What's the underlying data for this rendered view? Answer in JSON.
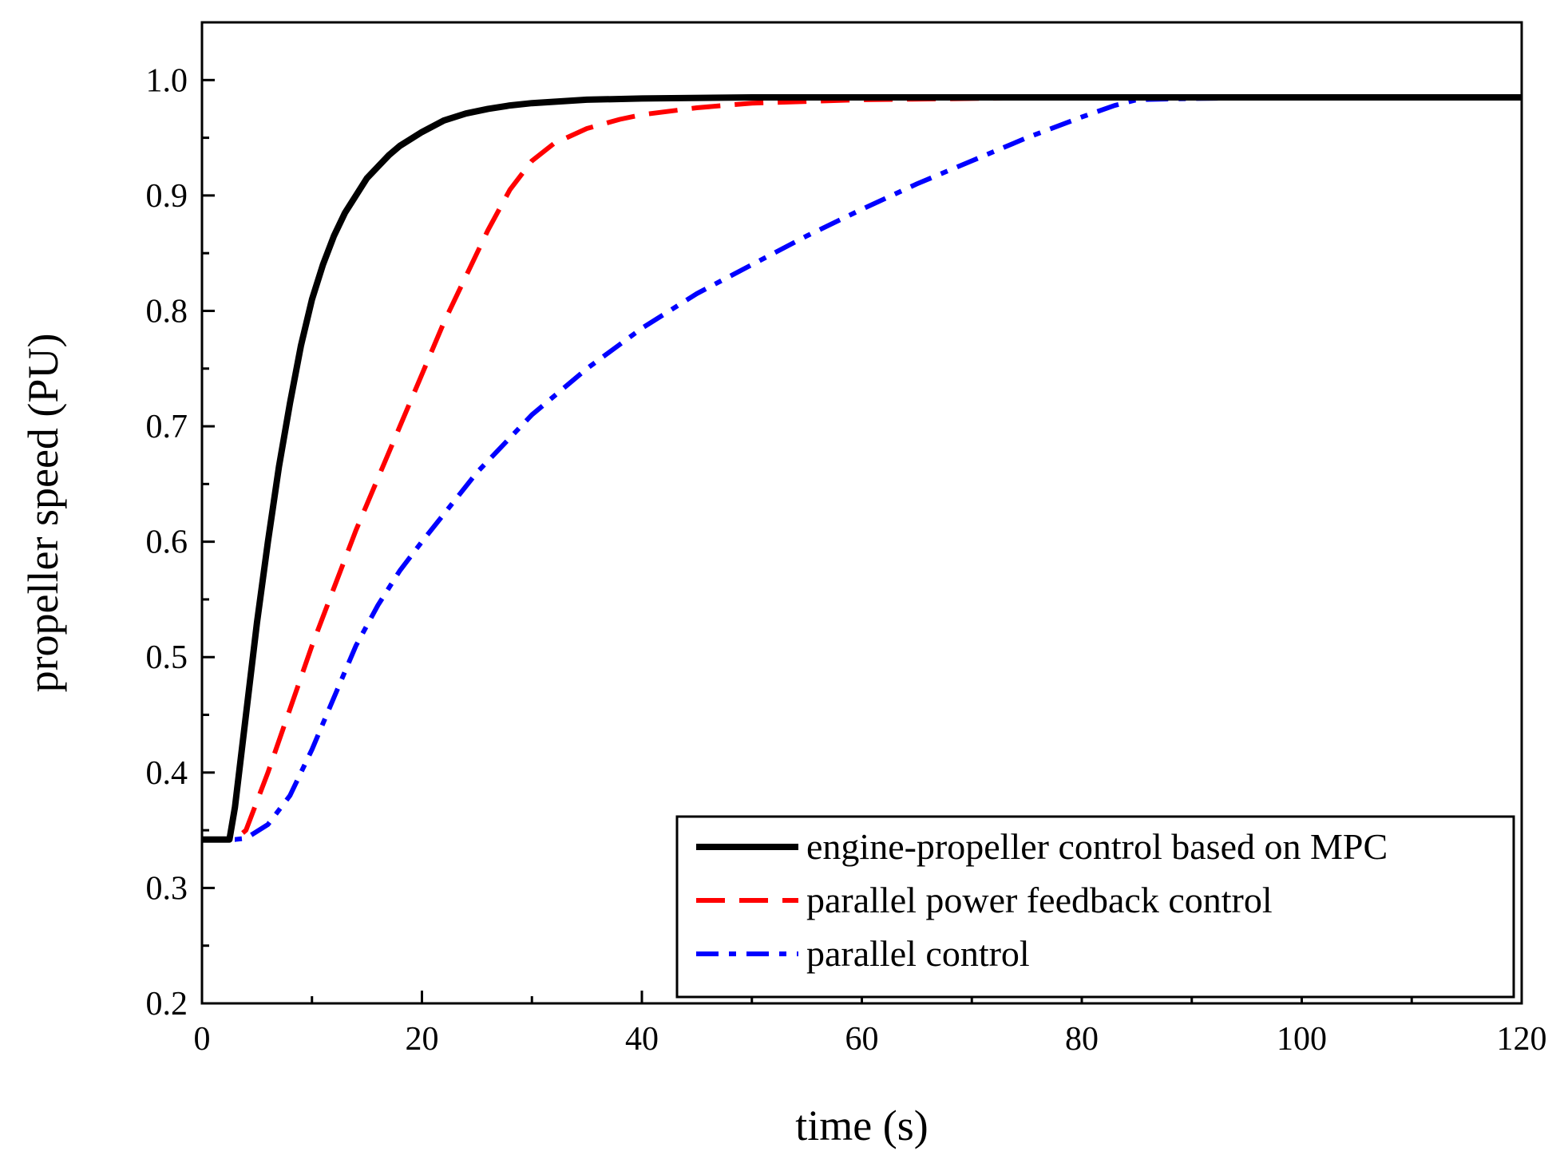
{
  "chart_data": {
    "type": "line",
    "title": "",
    "xlabel": "time (s)",
    "ylabel": "propeller speed (PU)",
    "xlim": [
      0,
      120
    ],
    "ylim": [
      0.2,
      1.05
    ],
    "xticks": [
      0,
      20,
      40,
      60,
      80,
      100,
      120
    ],
    "xtick_labels": [
      "0",
      "20",
      "40",
      "60",
      "80",
      "100",
      "120"
    ],
    "yticks": [
      0.2,
      0.3,
      0.4,
      0.5,
      0.6,
      0.7,
      0.8,
      0.9,
      1.0
    ],
    "ytick_labels": [
      "0.2",
      "0.3",
      "0.4",
      "0.5",
      "0.6",
      "0.7",
      "0.8",
      "0.9",
      "1.0"
    ],
    "grid": false,
    "legend_position": "bottom-right",
    "series": [
      {
        "name": "engine-propeller control based on MPC",
        "color": "#000000",
        "style": "solid",
        "x": [
          0,
          2.5,
          3,
          4,
          5,
          6,
          7,
          8,
          9,
          10,
          11,
          12,
          13,
          14,
          15,
          16,
          17,
          18,
          20,
          22,
          24,
          26,
          28,
          30,
          35,
          40,
          50,
          60,
          80,
          100,
          120
        ],
        "y": [
          0.342,
          0.342,
          0.37,
          0.45,
          0.53,
          0.6,
          0.665,
          0.72,
          0.77,
          0.81,
          0.84,
          0.865,
          0.885,
          0.9,
          0.915,
          0.925,
          0.935,
          0.943,
          0.955,
          0.965,
          0.971,
          0.975,
          0.978,
          0.98,
          0.983,
          0.984,
          0.985,
          0.985,
          0.985,
          0.985,
          0.985
        ]
      },
      {
        "name": "parallel power feedback control",
        "color": "#ff0000",
        "style": "dashed",
        "x": [
          0,
          3,
          4,
          6,
          8,
          10,
          12,
          14,
          16,
          18,
          20,
          22,
          24,
          26,
          28,
          30,
          32,
          35,
          38,
          40,
          45,
          50,
          60,
          70,
          80,
          100,
          120
        ],
        "y": [
          0.342,
          0.342,
          0.35,
          0.4,
          0.455,
          0.51,
          0.56,
          0.61,
          0.655,
          0.7,
          0.745,
          0.79,
          0.83,
          0.87,
          0.905,
          0.93,
          0.945,
          0.958,
          0.966,
          0.97,
          0.976,
          0.98,
          0.983,
          0.984,
          0.985,
          0.985,
          0.985
        ]
      },
      {
        "name": "parallel control",
        "color": "#0000ff",
        "style": "dash-dot",
        "x": [
          0,
          3,
          4,
          6,
          8,
          10,
          12,
          14,
          16,
          18,
          20,
          25,
          30,
          35,
          40,
          45,
          50,
          55,
          60,
          65,
          70,
          75,
          80,
          83,
          85,
          90,
          100,
          110,
          120
        ],
        "y": [
          0.342,
          0.342,
          0.343,
          0.355,
          0.38,
          0.42,
          0.465,
          0.51,
          0.545,
          0.575,
          0.6,
          0.66,
          0.71,
          0.75,
          0.785,
          0.815,
          0.84,
          0.865,
          0.888,
          0.91,
          0.93,
          0.95,
          0.968,
          0.978,
          0.983,
          0.984,
          0.985,
          0.985,
          0.985
        ]
      }
    ]
  }
}
